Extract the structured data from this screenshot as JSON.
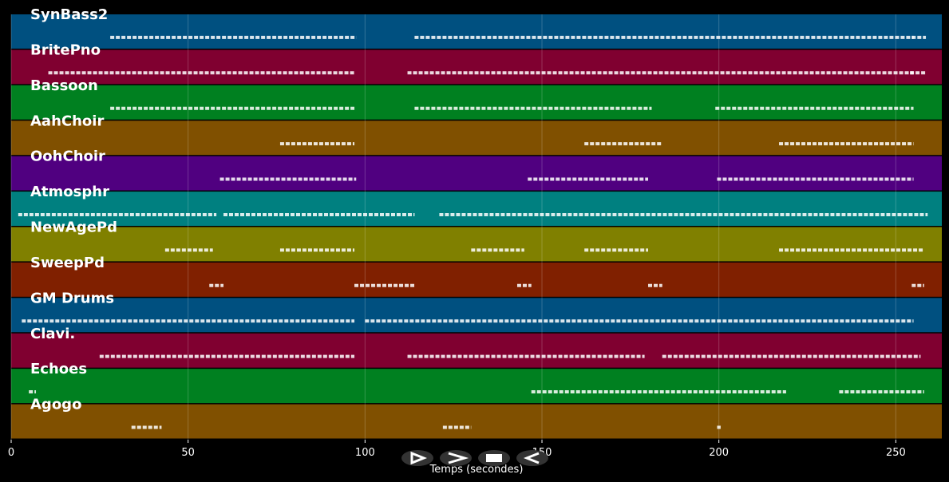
{
  "chart_data": {
    "type": "timeline",
    "x_label": "Temps (secondes)",
    "xlim": [
      0,
      263
    ],
    "xticks": [
      0,
      50,
      100,
      150,
      200,
      250
    ],
    "grid": true,
    "tracks": [
      {
        "name": "SynBass2",
        "color": "#005080",
        "spans": [
          [
            28,
            97.5
          ],
          [
            114,
            255
          ],
          [
            254.5,
            258.5
          ]
        ]
      },
      {
        "name": "BritePno",
        "color": "#800030",
        "spans": [
          [
            10.5,
            97
          ],
          [
            112,
            255
          ],
          [
            254,
            258.5
          ]
        ]
      },
      {
        "name": "Bassoon",
        "color": "#008020",
        "spans": [
          [
            28,
            97
          ],
          [
            114,
            181
          ],
          [
            199,
            255
          ]
        ]
      },
      {
        "name": "AahChoir",
        "color": "#805000",
        "spans": [
          [
            76,
            97
          ],
          [
            162,
            184
          ],
          [
            217,
            255
          ]
        ]
      },
      {
        "name": "OohChoir",
        "color": "#500080",
        "spans": [
          [
            59,
            97.5
          ],
          [
            146,
            180
          ],
          [
            199.5,
            255
          ]
        ]
      },
      {
        "name": "Atmosphr",
        "color": "#008080",
        "spans": [
          [
            2,
            58
          ],
          [
            60,
            114
          ],
          [
            121,
            259
          ]
        ]
      },
      {
        "name": "NewAgePd",
        "color": "#808000",
        "spans": [
          [
            43.5,
            57
          ],
          [
            76,
            97
          ],
          [
            130,
            145
          ],
          [
            162,
            180
          ],
          [
            217,
            258
          ]
        ]
      },
      {
        "name": "SweepPd",
        "color": "#802000",
        "spans": [
          [
            56,
            60
          ],
          [
            97,
            114
          ],
          [
            143,
            147
          ],
          [
            180,
            184
          ],
          [
            254.5,
            258
          ]
        ]
      },
      {
        "name": "GM Drums",
        "color": "#005080",
        "spans": [
          [
            3,
            97
          ],
          [
            100,
            255
          ]
        ]
      },
      {
        "name": "Clavi.",
        "color": "#800030",
        "spans": [
          [
            25,
            97
          ],
          [
            112,
            179
          ],
          [
            184,
            257
          ]
        ]
      },
      {
        "name": "Echoes",
        "color": "#008020",
        "spans": [
          [
            5,
            7
          ],
          [
            147,
            219
          ],
          [
            234,
            258
          ]
        ]
      },
      {
        "name": "Agogo",
        "color": "#805000",
        "spans": [
          [
            34,
            42.5
          ],
          [
            122,
            130
          ],
          [
            199.5,
            200.5
          ]
        ]
      }
    ]
  }
}
